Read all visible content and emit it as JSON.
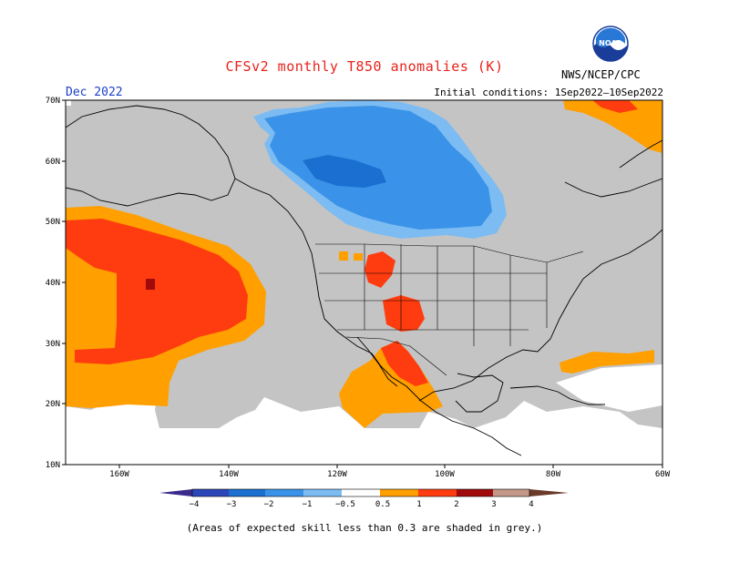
{
  "header": {
    "title": "CFSv2 monthly T850 anomalies (K)",
    "month": "Dec 2022",
    "initial_conditions": "Initial conditions: 1Sep2022–10Sep2022",
    "agency": "NWS/NCEP/CPC",
    "logo_text": "NOAA"
  },
  "axes": {
    "lat_labels": [
      "70N",
      "60N",
      "50N",
      "40N",
      "30N",
      "20N",
      "10N"
    ],
    "lon_labels": [
      "160W",
      "140W",
      "120W",
      "100W",
      "80W",
      "60W"
    ]
  },
  "colorbar": {
    "ticks": [
      "−4",
      "−3",
      "−2",
      "−1",
      "−0.5",
      "0.5",
      "1",
      "2",
      "3",
      "4"
    ],
    "colors": {
      "lt_m4": "#3a2a8c",
      "m4_m3": "#2b46b8",
      "m3_m2": "#1b6fd0",
      "m2_m1": "#3a93e8",
      "m1_m05": "#7cbcf2",
      "neutral": "#ffffff",
      "p05_p1": "#ff9f00",
      "p1_p2": "#ff3c0f",
      "p2_p3": "#a00a0a",
      "p3_p4": "#c49888",
      "gt_p4": "#6b3a2a"
    }
  },
  "map_colors": {
    "skill_mask": "#c4c4c4",
    "ocean": "#ffffff"
  },
  "footnote": "(Areas of expected skill less than 0.3 are shaded in grey.)"
}
